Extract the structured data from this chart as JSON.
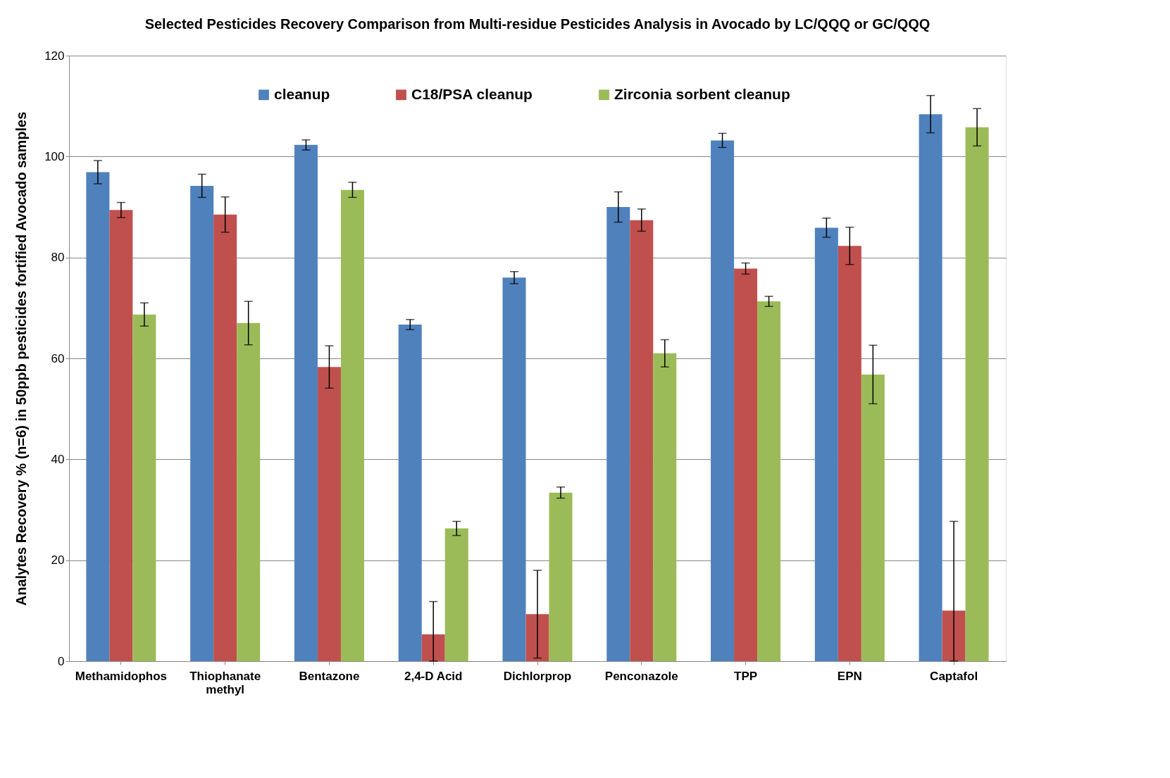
{
  "chart_data": {
    "type": "bar",
    "title": "Selected Pesticides Recovery Comparison from Multi-residue Pesticides Analysis in Avocado by LC/QQQ or GC/QQQ",
    "ylabel": "Analytes Recovery % (n=6) in 50ppb pesticides fortified Avocado samples",
    "categories": [
      "Methamidophos",
      "Thiophanate\nmethyl",
      "Bentazone",
      "2,4-D Acid",
      "Dichlorprop",
      "Penconazole",
      "TPP",
      "EPN",
      "Captafol"
    ],
    "series": [
      {
        "name": "cleanup",
        "color": "#4f81bd",
        "values": [
          96.9,
          94.2,
          102.3,
          66.7,
          76.0,
          90.0,
          103.2,
          85.9,
          108.4
        ],
        "errors": [
          2.3,
          2.3,
          1.0,
          1.0,
          1.2,
          3.0,
          1.4,
          1.9,
          3.7
        ]
      },
      {
        "name": "C18/PSA cleanup",
        "color": "#c0504d",
        "values": [
          89.4,
          88.5,
          58.3,
          5.3,
          9.3,
          87.4,
          77.8,
          82.3,
          10.0
        ],
        "errors": [
          1.5,
          3.5,
          4.2,
          [
            0,
            11.8
          ],
          [
            0.6,
            18.0
          ],
          2.2,
          1.1,
          3.7,
          [
            0,
            27.7
          ]
        ]
      },
      {
        "name": "Zirconia sorbent cleanup",
        "color": "#9bbb59",
        "values": [
          68.7,
          67.0,
          93.4,
          26.3,
          33.4,
          61.0,
          71.3,
          56.8,
          105.8
        ],
        "errors": [
          2.3,
          4.3,
          1.5,
          1.4,
          1.1,
          2.7,
          1.0,
          5.8,
          3.7
        ]
      }
    ],
    "ylim": [
      0,
      120
    ],
    "yticks": [
      0,
      20,
      40,
      60,
      80,
      100,
      120
    ],
    "grid": "y",
    "legend": "top"
  }
}
